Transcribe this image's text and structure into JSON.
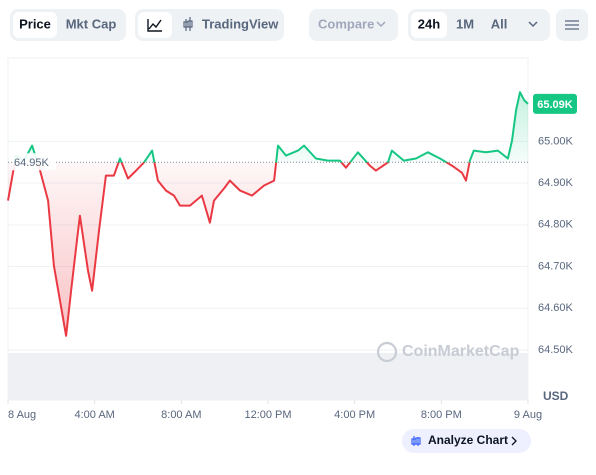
{
  "toolbar": {
    "price": "Price",
    "mkt_cap": "Mkt Cap",
    "tradingview": "TradingView",
    "compare": "Compare",
    "range_24h": "24h",
    "range_1m": "1M",
    "range_all": "All"
  },
  "watermark": "CoinMarketCap",
  "analyze_button": "Analyze Chart",
  "chart_data": {
    "type": "line",
    "y_unit": "USD",
    "x": [
      0,
      0.37,
      0.74,
      1.11,
      1.48,
      1.85,
      2.12,
      2.4,
      2.68,
      2.91,
      3.18,
      3.32,
      3.69,
      3.88,
      4.2,
      4.52,
      4.89,
      5.17,
      5.54,
      5.91,
      6.28,
      6.65,
      6.92,
      7.29,
      7.66,
      7.94,
      8.4,
      8.95,
      9.32,
      9.51,
      9.97,
      10.24,
      10.71,
      11.26,
      11.81,
      12.28,
      12.46,
      12.83,
      13.38,
      13.66,
      14.21,
      14.77,
      15.32,
      15.6,
      16.15,
      16.7,
      16.98,
      17.54,
      17.72,
      18.27,
      18.83,
      19.38,
      19.94,
      20.49,
      20.95,
      21.14,
      21.32,
      21.5,
      22.06,
      22.61,
      23.07,
      23.26,
      23.45,
      23.63,
      23.82,
      24
    ],
    "values": [
      64858,
      64966,
      64954,
      64990,
      64930,
      64858,
      64702,
      64618,
      64534,
      64642,
      64762,
      64822,
      64690,
      64642,
      64786,
      64918,
      64918,
      64959,
      64911,
      64930,
      64950,
      64978,
      64906,
      64882,
      64870,
      64846,
      64846,
      64870,
      64805,
      64858,
      64887,
      64906,
      64882,
      64870,
      64894,
      64906,
      64990,
      64966,
      64978,
      64990,
      64959,
      64954,
      64954,
      64937,
      64974,
      64942,
      64930,
      64950,
      64978,
      64954,
      64959,
      64974,
      64959,
      64942,
      64925,
      64906,
      64954,
      64978,
      64974,
      64978,
      64959,
      65002,
      65075,
      65118,
      65099,
      65090
    ],
    "up_color": "#16c784",
    "down_color": "#ea3943",
    "baseline": {
      "value": 64950,
      "label": "64.95K"
    },
    "last_price": {
      "value": 65090,
      "label": "65.09K"
    },
    "xlim": [
      0,
      24
    ],
    "xticks": [
      {
        "value": 0,
        "label": "8 Aug"
      },
      {
        "value": 4,
        "label": "4:00 AM"
      },
      {
        "value": 8,
        "label": "8:00 AM"
      },
      {
        "value": 12,
        "label": "12:00 PM"
      },
      {
        "value": 16,
        "label": "4:00 PM"
      },
      {
        "value": 20,
        "label": "8:00 PM"
      },
      {
        "value": 24,
        "label": "9 Aug"
      }
    ],
    "ylim": [
      64380,
      65200
    ],
    "yticks": [
      {
        "value": 64500,
        "label": "64.50K"
      },
      {
        "value": 64600,
        "label": "64.60K"
      },
      {
        "value": 64700,
        "label": "64.70K"
      },
      {
        "value": 64800,
        "label": "64.80K"
      },
      {
        "value": 64900,
        "label": "64.90K"
      },
      {
        "value": 65000,
        "label": "65.00K"
      }
    ],
    "grid": true
  }
}
